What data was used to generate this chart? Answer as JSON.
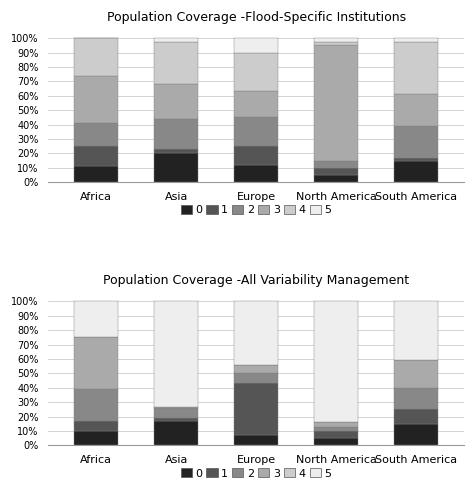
{
  "title_top": "Population Coverage -Flood-Specific Institutions",
  "title_bottom": "Population Coverage -All Variability Management",
  "categories": [
    "Africa",
    "Asia",
    "Europe",
    "North America",
    "South America"
  ],
  "legend_labels": [
    "0",
    "1",
    "2",
    "3",
    "4",
    "5"
  ],
  "colors": [
    "#222222",
    "#555555",
    "#888888",
    "#aaaaaa",
    "#cccccc",
    "#eeeeee"
  ],
  "flood_specific": {
    "Africa": [
      11,
      14,
      16,
      33,
      26,
      0
    ],
    "Asia": [
      20,
      3,
      21,
      24,
      29,
      3
    ],
    "Europe": [
      12,
      13,
      20,
      18,
      27,
      10
    ],
    "North America": [
      5,
      5,
      5,
      80,
      2,
      3
    ],
    "South America": [
      15,
      2,
      22,
      22,
      36,
      3
    ]
  },
  "all_variability": {
    "Africa": [
      10,
      7,
      22,
      36,
      0,
      25
    ],
    "Asia": [
      17,
      2,
      7,
      1,
      0,
      73
    ],
    "Europe": [
      7,
      36,
      7,
      6,
      0,
      44
    ],
    "North America": [
      5,
      5,
      3,
      3,
      0,
      84
    ],
    "South America": [
      15,
      10,
      15,
      19,
      0,
      41
    ]
  }
}
